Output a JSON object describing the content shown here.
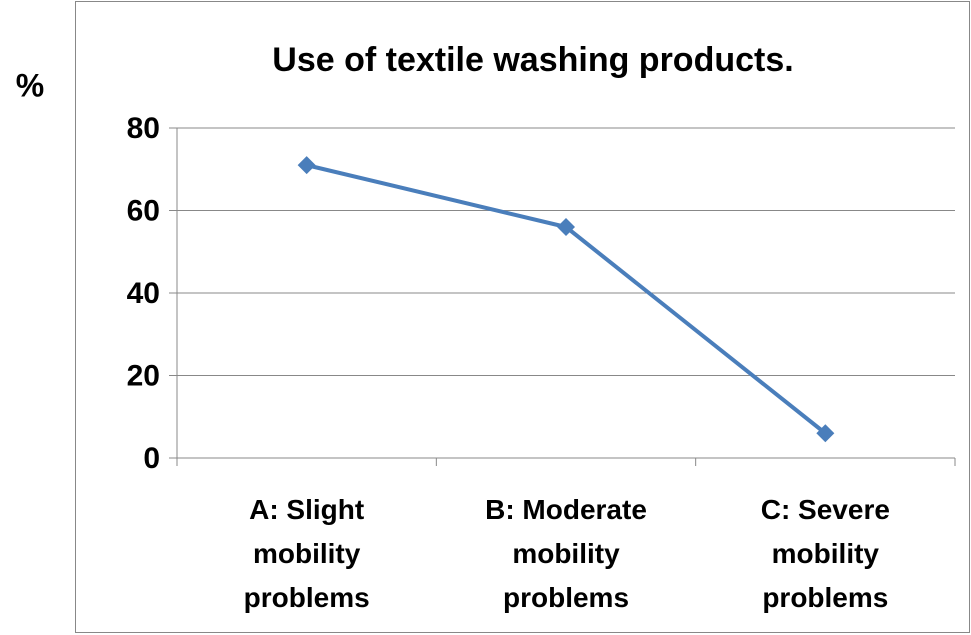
{
  "chart_data": {
    "type": "line",
    "title": "Use of textile washing products.",
    "y_label": "%",
    "categories": [
      "A: Slight\nmobility\nproblems",
      "B: Moderate\nmobility\nproblems",
      "C: Severe\nmobility\nproblems"
    ],
    "series": [
      {
        "name": "Use of textile washing products",
        "color": "#4a7ebb",
        "values": [
          71,
          56,
          6
        ]
      }
    ],
    "ylim": [
      0,
      80
    ],
    "yticks": [
      0,
      20,
      40,
      60,
      80
    ],
    "grid": true
  }
}
